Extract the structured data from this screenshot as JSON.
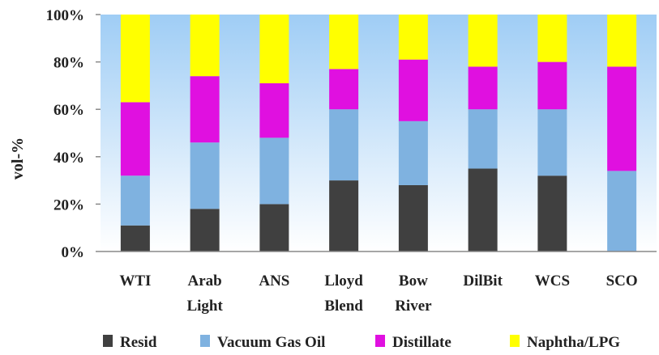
{
  "chart_data": {
    "type": "bar",
    "stacked": true,
    "percent": true,
    "categories": [
      [
        "WTI"
      ],
      [
        "Arab",
        "Light"
      ],
      [
        "ANS"
      ],
      [
        "Lloyd",
        "Blend"
      ],
      [
        "Bow",
        "River"
      ],
      [
        "DilBit"
      ],
      [
        "WCS"
      ],
      [
        "SCO"
      ]
    ],
    "series": [
      {
        "name": "Resid",
        "color": "#404040",
        "values": [
          11,
          18,
          20,
          30,
          28,
          35,
          32,
          0
        ]
      },
      {
        "name": "Vacuum Gas Oil",
        "color": "#7fb2e0",
        "values": [
          21,
          28,
          28,
          30,
          27,
          25,
          28,
          34
        ]
      },
      {
        "name": "Distillate",
        "color": "#e010e0",
        "values": [
          31,
          28,
          23,
          17,
          26,
          18,
          20,
          44
        ]
      },
      {
        "name": "Naphtha/LPG",
        "color": "#ffff00",
        "values": [
          37,
          26,
          29,
          23,
          19,
          22,
          20,
          22
        ]
      }
    ],
    "ylabel": "vol-%",
    "yticks": [
      "0%",
      "20%",
      "40%",
      "60%",
      "80%",
      "100%"
    ],
    "ylim": [
      0,
      100
    ],
    "legend_position": "bottom",
    "background_gradient": [
      "#9fcdf5",
      "#ffffff"
    ]
  }
}
